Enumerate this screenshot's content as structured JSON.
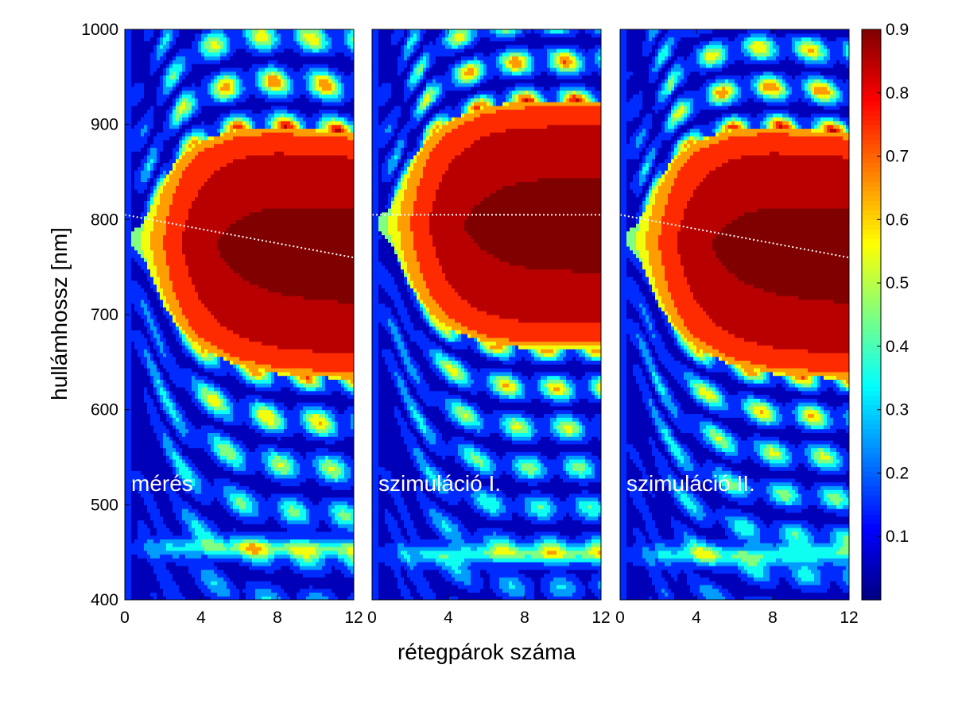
{
  "chart_data": {
    "type": "heatmap",
    "xlabel": "rétegpárok száma",
    "ylabel": "hullámhossz [nm]",
    "xlim": [
      0,
      12
    ],
    "ylim": [
      400,
      1000
    ],
    "x_ticks": [
      0,
      4,
      8,
      12
    ],
    "x_tick_labels": [
      "0",
      "4",
      "8",
      "12"
    ],
    "y_ticks": [
      400,
      500,
      600,
      700,
      800,
      900,
      1000
    ],
    "y_tick_labels": [
      "400",
      "500",
      "600",
      "700",
      "800",
      "900",
      "1000"
    ],
    "colorbar": {
      "colormap": "jet",
      "range": [
        0.0,
        0.9
      ],
      "ticks": [
        0.1,
        0.2,
        0.3,
        0.4,
        0.5,
        0.6,
        0.7,
        0.8,
        0.9
      ],
      "tick_labels": [
        "0.1",
        "0.2",
        "0.3",
        "0.4",
        "0.5",
        "0.6",
        "0.7",
        "0.8",
        "0.9"
      ]
    },
    "contour_levels": [
      0.1,
      0.2,
      0.3,
      0.4,
      0.5,
      0.6,
      0.7,
      0.8,
      0.9
    ],
    "stopband": {
      "layer_pairs": [
        0,
        1,
        2,
        3,
        4,
        6,
        8,
        10,
        12
      ],
      "half_width_nm": [
        0,
        20,
        65,
        95,
        110,
        125,
        130,
        130,
        130
      ]
    },
    "panels": [
      {
        "label": "mérés",
        "center_line_nm": [
          805,
          760
        ],
        "stopband_center_nm": 780,
        "fringe_period_nm": 48,
        "blue_band_nm": 455
      },
      {
        "label": "szimuláció I.",
        "center_line_nm": [
          805,
          805
        ],
        "stopband_center_nm": 795,
        "fringe_period_nm": 42,
        "blue_band_nm": 448
      },
      {
        "label": "szimuláció II.",
        "center_line_nm": [
          805,
          760
        ],
        "stopband_center_nm": 780,
        "fringe_period_nm": 42,
        "blue_band_nm": 448
      }
    ]
  }
}
